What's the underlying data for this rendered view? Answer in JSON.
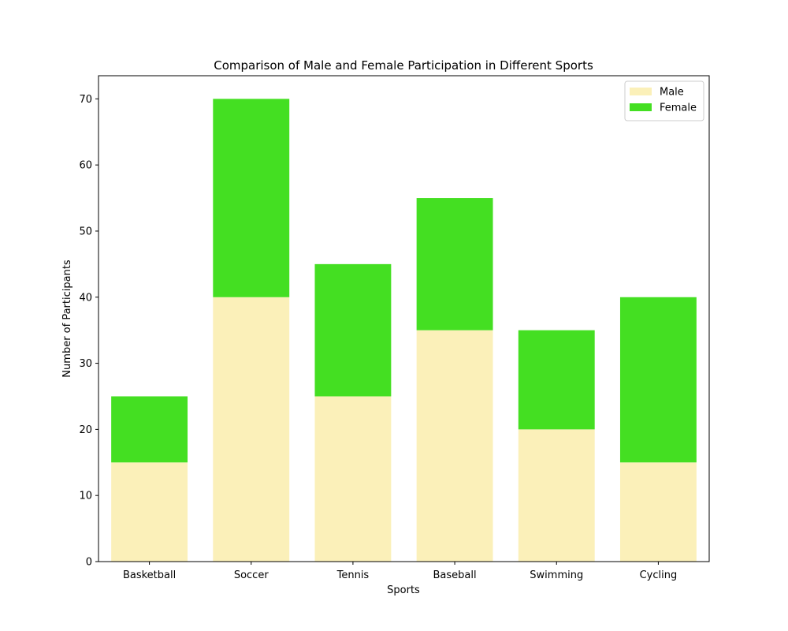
{
  "chart_data": {
    "type": "bar",
    "stacked": true,
    "title": "Comparison of Male and Female Participation in Different Sports",
    "xlabel": "Sports",
    "ylabel": "Number of Participants",
    "categories": [
      "Basketball",
      "Soccer",
      "Tennis",
      "Baseball",
      "Swimming",
      "Cycling"
    ],
    "series": [
      {
        "name": "Male",
        "color": "#fbf0b9",
        "values": [
          15,
          40,
          25,
          35,
          20,
          15
        ]
      },
      {
        "name": "Female",
        "color": "#44df22",
        "values": [
          10,
          30,
          20,
          20,
          15,
          25
        ]
      }
    ],
    "ylim": [
      0,
      73.5
    ],
    "yticks": [
      0,
      10,
      20,
      30,
      40,
      50,
      60,
      70
    ],
    "grid": false,
    "legend_position": "top-right"
  }
}
